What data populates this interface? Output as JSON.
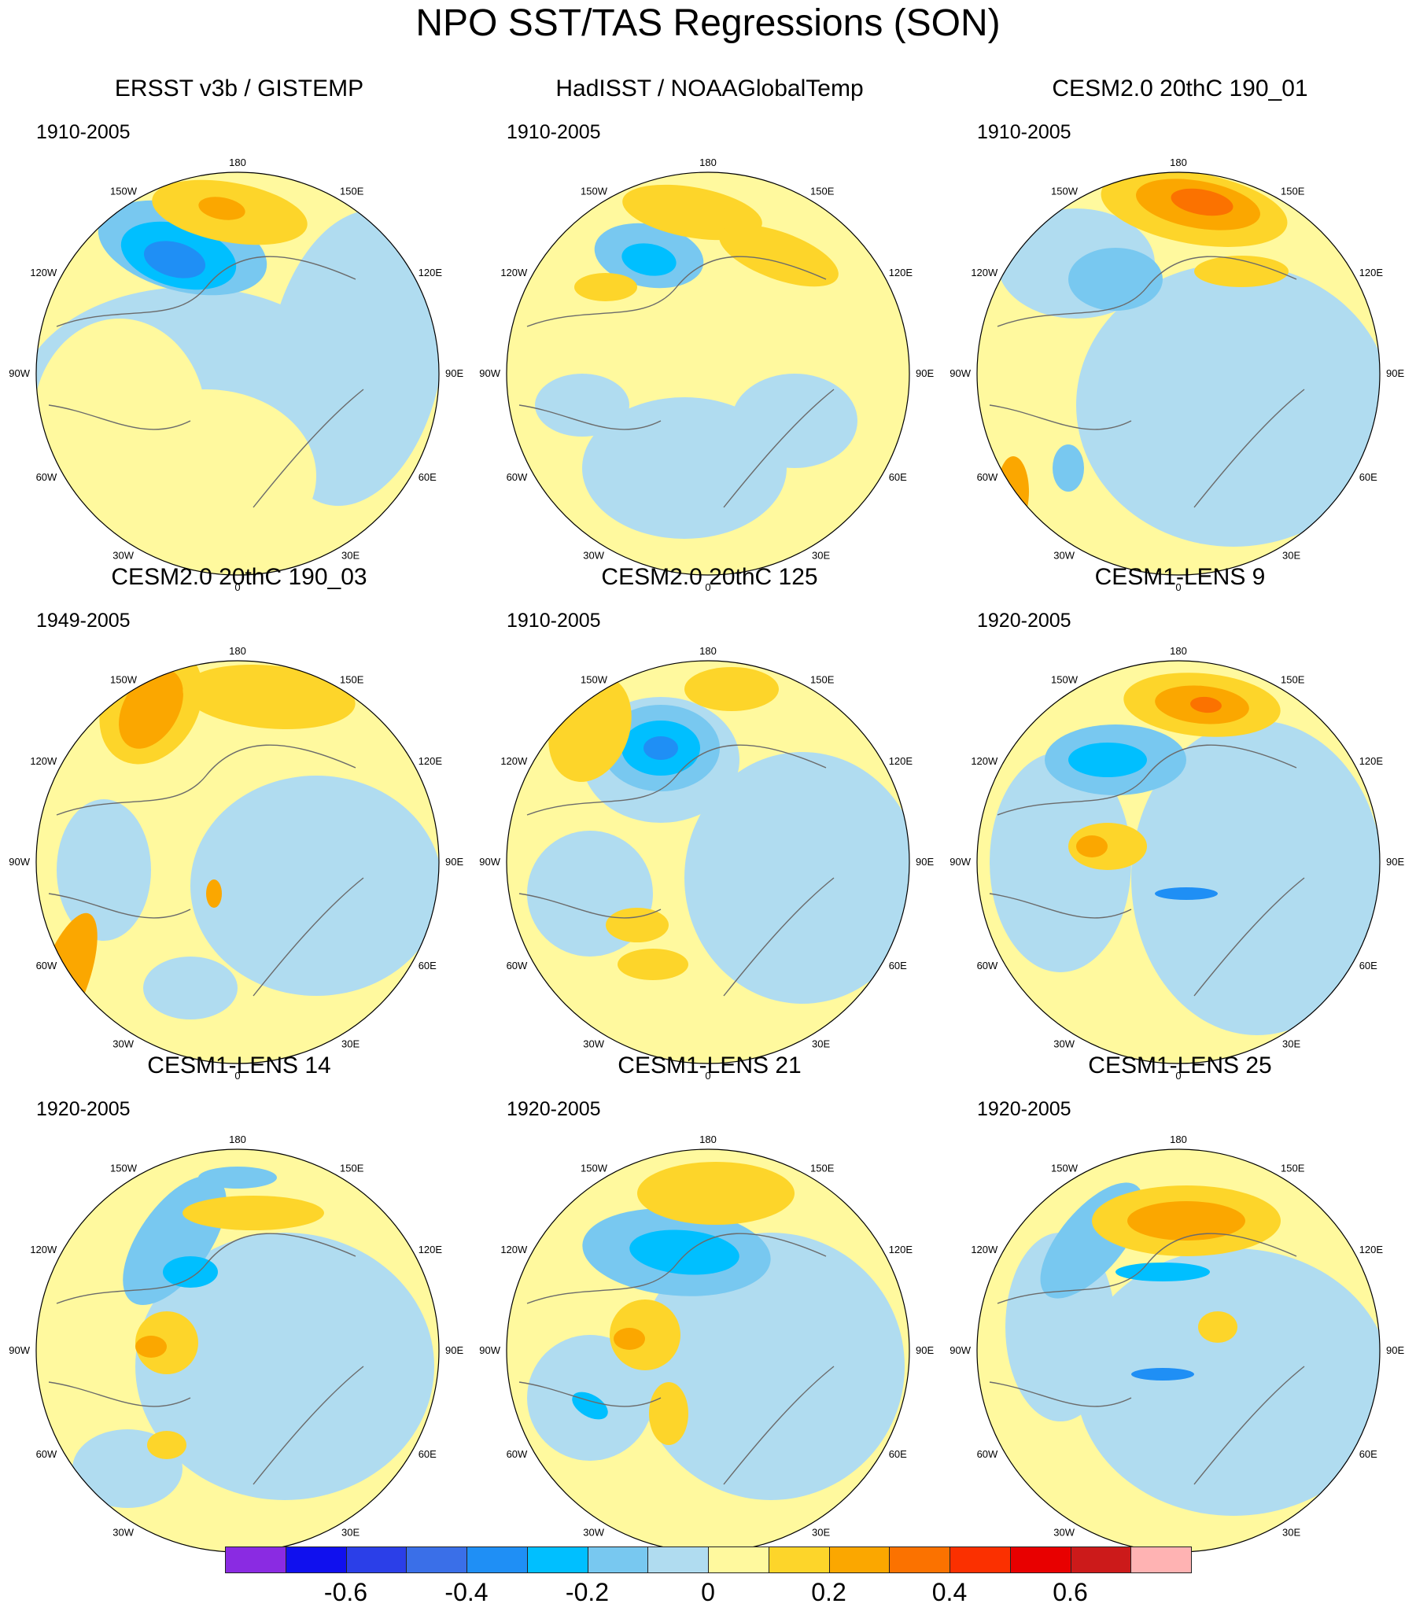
{
  "title": "NPO SST/TAS Regressions (SON)",
  "longitude_labels": {
    "top": "180",
    "bottom": "0",
    "left_upper": "120W",
    "left_upper2": "150W",
    "left_mid": "90W",
    "left_lower": "60W",
    "left_lower2": "30W",
    "right_upper2": "150E",
    "right_upper": "120E",
    "right_mid": "90E",
    "right_lower": "60E",
    "right_lower2": "30E"
  },
  "panels": [
    {
      "title": "ERSST v3b / GISTEMP",
      "period": "1910-2005"
    },
    {
      "title": "HadISST / NOAAGlobalTemp",
      "period": "1910-2005"
    },
    {
      "title": "CESM2.0 20thC 190_01",
      "period": "1910-2005"
    },
    {
      "title": "CESM2.0 20thC 190_03",
      "period": "1949-2005"
    },
    {
      "title": "CESM2.0 20thC 125",
      "period": "1910-2005"
    },
    {
      "title": "CESM1-LENS 9",
      "period": "1920-2005"
    },
    {
      "title": "CESM1-LENS 14",
      "period": "1920-2005"
    },
    {
      "title": "CESM1-LENS 21",
      "period": "1920-2005"
    },
    {
      "title": "CESM1-LENS 25",
      "period": "1920-2005"
    }
  ],
  "colorbar": {
    "colors": [
      "#8a2be2",
      "#1010ee",
      "#2b3fe8",
      "#3a6fe8",
      "#1f8ff5",
      "#00bfff",
      "#78c8f0",
      "#b0dcf0",
      "#fff99e",
      "#fdd52a",
      "#fba700",
      "#fb7200",
      "#fb3000",
      "#e80000",
      "#cc1a1a",
      "#ffb3b3"
    ],
    "labels": [
      "-0.6",
      "-0.4",
      "-0.2",
      "0",
      "0.2",
      "0.4",
      "0.6"
    ],
    "label_values": [
      -0.6,
      -0.4,
      -0.2,
      0,
      0.2,
      0.4,
      0.6
    ],
    "levels": [
      -0.7,
      -0.6,
      -0.5,
      -0.4,
      -0.3,
      -0.2,
      -0.1,
      0,
      0.1,
      0.2,
      0.3,
      0.4,
      0.5,
      0.6,
      0.7
    ]
  }
}
